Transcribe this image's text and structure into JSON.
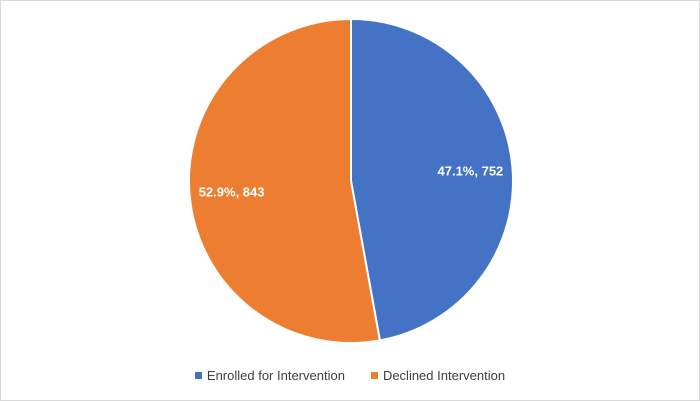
{
  "chart_data": {
    "type": "pie",
    "categories": [
      "Enrolled for Intervention",
      "Declined Intervention"
    ],
    "values": [
      752,
      843
    ],
    "percentages": [
      47.1,
      52.9
    ],
    "data_labels": [
      "47.1%, 752",
      "52.9%, 843"
    ],
    "colors": [
      "#4472C4",
      "#ED7D31"
    ],
    "legend_position": "bottom",
    "title": ""
  },
  "legend": {
    "items": [
      {
        "label": "Enrolled for Intervention",
        "color": "#4472C4"
      },
      {
        "label": "Declined Intervention",
        "color": "#ED7D31"
      }
    ]
  }
}
